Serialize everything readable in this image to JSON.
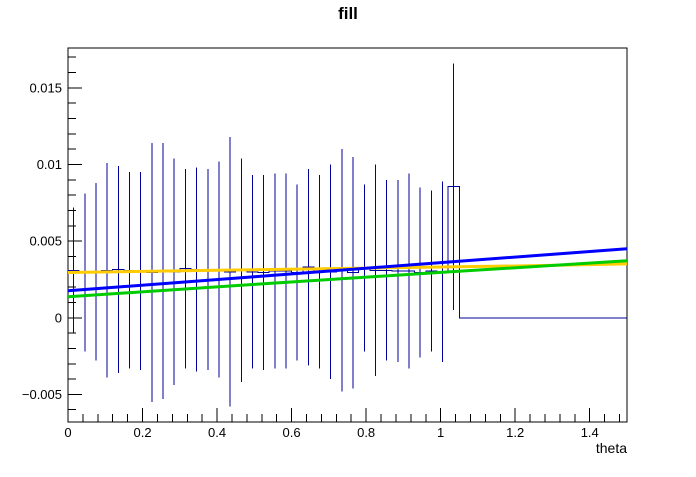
{
  "chart_data": {
    "type": "bar",
    "subtype": "histogram-with-error-bars-and-fit-curves",
    "title": "fill",
    "xlabel": "theta",
    "ylabel": "",
    "xlim": [
      0,
      1.5
    ],
    "ylim": [
      -0.0068,
      0.0176
    ],
    "grid": false,
    "legend": "none",
    "background": "#ffffff",
    "frame_color": "#000000",
    "x_axis": {
      "major_ticks": [
        0,
        0.2,
        0.4,
        0.6,
        0.8,
        1.0,
        1.2,
        1.4
      ],
      "labels": [
        "0",
        "0.2",
        "0.4",
        "0.6",
        "0.8",
        "1",
        "1.2",
        "1.4"
      ],
      "minor_step": 0.04
    },
    "y_axis": {
      "major_ticks": [
        -0.005,
        0,
        0.005,
        0.01,
        0.015
      ],
      "labels": [
        "−0.005",
        "0",
        "0.005",
        "0.01",
        "0.015"
      ],
      "minor_step": 0.001
    },
    "histogram": {
      "color": "#00009a",
      "n_bins": 50,
      "bin_width": 0.03,
      "bins_format": [
        "bin_center_theta",
        "error_bar_top",
        "error_bar_bottom"
      ],
      "bins": [
        [
          0.015,
          0.0072,
          -0.001
        ],
        [
          0.045,
          0.0081,
          -0.0022
        ],
        [
          0.075,
          0.0088,
          -0.0028
        ],
        [
          0.105,
          0.0101,
          -0.0039
        ],
        [
          0.135,
          0.0099,
          -0.0036
        ],
        [
          0.165,
          0.0095,
          -0.0033
        ],
        [
          0.195,
          0.0095,
          -0.0034
        ],
        [
          0.225,
          0.0114,
          -0.0055
        ],
        [
          0.255,
          0.0114,
          -0.0053
        ],
        [
          0.285,
          0.0104,
          -0.0044
        ],
        [
          0.315,
          0.0097,
          -0.0033
        ],
        [
          0.345,
          0.0098,
          -0.0035
        ],
        [
          0.375,
          0.0097,
          -0.0034
        ],
        [
          0.405,
          0.0102,
          -0.0039
        ],
        [
          0.435,
          0.0118,
          -0.0058
        ],
        [
          0.465,
          0.0104,
          -0.0042
        ],
        [
          0.495,
          0.0093,
          -0.0033
        ],
        [
          0.525,
          0.0093,
          -0.0034
        ],
        [
          0.555,
          0.0094,
          -0.0033
        ],
        [
          0.585,
          0.0094,
          -0.0033
        ],
        [
          0.615,
          0.0087,
          -0.0028
        ],
        [
          0.645,
          0.0097,
          -0.0031
        ],
        [
          0.675,
          0.0093,
          -0.0033
        ],
        [
          0.705,
          0.01,
          -0.004
        ],
        [
          0.735,
          0.011,
          -0.0048
        ],
        [
          0.765,
          0.0105,
          -0.0046
        ],
        [
          0.795,
          0.0087,
          -0.0022
        ],
        [
          0.825,
          0.01,
          -0.0038
        ],
        [
          0.855,
          0.009,
          -0.0028
        ],
        [
          0.885,
          0.009,
          -0.0029
        ],
        [
          0.915,
          0.0094,
          -0.0033
        ],
        [
          0.945,
          0.0085,
          -0.0026
        ],
        [
          0.975,
          0.0083,
          -0.0022
        ],
        [
          1.005,
          0.0089,
          -0.0029
        ],
        [
          1.035,
          0.0166,
          0.0005
        ]
      ],
      "empty_bins_from_theta": 1.05,
      "empty_bins_content": 0
    },
    "curves": [
      {
        "name": "yellow-fit",
        "color": "#ffcc00",
        "width": 3,
        "points": [
          [
            0,
            0.00295
          ],
          [
            0.4,
            0.0031
          ],
          [
            0.8,
            0.00324
          ],
          [
            1.2,
            0.00338
          ],
          [
            1.5,
            0.00352
          ]
        ]
      },
      {
        "name": "green-fit",
        "color": "#00cc00",
        "width": 3,
        "points": [
          [
            0,
            0.00137
          ],
          [
            0.5,
            0.00218
          ],
          [
            1.0,
            0.00296
          ],
          [
            1.5,
            0.00372
          ]
        ]
      },
      {
        "name": "blue-fit",
        "color": "#0000ff",
        "width": 3,
        "points": [
          [
            0,
            0.00176
          ],
          [
            0.5,
            0.00268
          ],
          [
            1.0,
            0.0036
          ],
          [
            1.5,
            0.0045
          ]
        ]
      }
    ]
  }
}
